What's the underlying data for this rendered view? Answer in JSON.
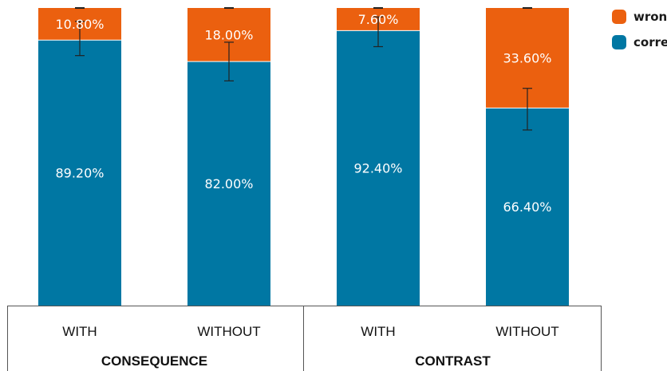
{
  "chart_data": {
    "type": "bar",
    "stacked": true,
    "categories": [
      "WITH",
      "WITHOUT",
      "WITH",
      "WITHOUT"
    ],
    "groups": [
      {
        "label": "CONSEQUENCE",
        "categories": [
          0,
          1
        ]
      },
      {
        "label": "CONTRAST",
        "categories": [
          2,
          3
        ]
      }
    ],
    "series": [
      {
        "name": "correct",
        "color": "#0077A3",
        "values": [
          89.2,
          82.0,
          92.4,
          66.4
        ],
        "labels": [
          "89.20%",
          "82.00%",
          "92.40%",
          "66.40%"
        ]
      },
      {
        "name": "wrong",
        "color": "#EB600F",
        "values": [
          10.8,
          18.0,
          7.6,
          33.6
        ],
        "labels": [
          "10.80%",
          "18.00%",
          "7.60%",
          "33.60%"
        ]
      }
    ],
    "error_bars": {
      "series": "correct",
      "low": [
        84.0,
        75.5,
        87.0,
        59.0
      ],
      "high": [
        95.5,
        88.5,
        97.0,
        73.0
      ]
    },
    "ylim": [
      0,
      100
    ],
    "ylabel": "",
    "xlabel": "",
    "grid": false,
    "legend": {
      "placement": "top-right",
      "order": [
        "wrong",
        "correct"
      ]
    }
  }
}
